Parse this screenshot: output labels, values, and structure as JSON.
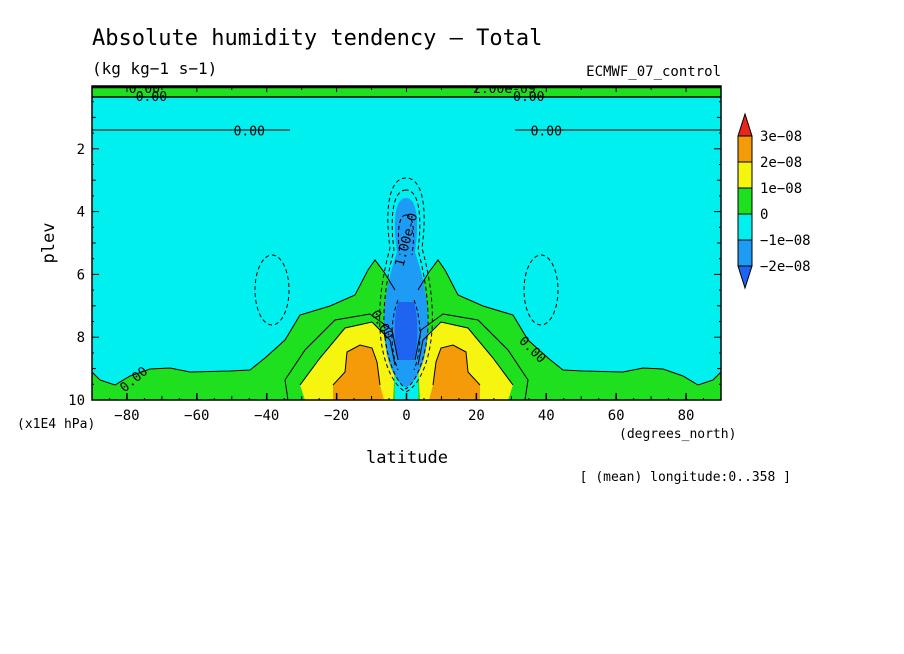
{
  "chart_data": {
    "type": "heatmap",
    "title": "Absolute humidity tendency — Total",
    "units": "(kg kg−1 s−1)",
    "dataset": "ECMWF_07_control",
    "xlabel": "latitude",
    "x_units": "(degrees_north)",
    "ylabel": "plev",
    "y_units": "(x1E4 hPa)",
    "footnote": "[ (mean) longitude:0..358 ]",
    "xlim": [
      -90,
      90
    ],
    "ylim": [
      10,
      0
    ],
    "x_ticks": [
      -80,
      -60,
      -40,
      -20,
      0,
      20,
      40,
      60,
      80
    ],
    "x_tick_labels": [
      "−80",
      "−60",
      "−40",
      "−20",
      "0",
      "20",
      "40",
      "60",
      "80"
    ],
    "y_ticks": [
      2,
      4,
      6,
      8,
      10
    ],
    "y_tick_labels": [
      "2",
      "4",
      "6",
      "8",
      "10"
    ],
    "levels": [
      {
        "label": "3e−08",
        "color": "#e8261a"
      },
      {
        "label": "2e−08",
        "color": "#f59b0a"
      },
      {
        "label": "1e−08",
        "color": "#f5f50f"
      },
      {
        "label": "0",
        "color": "#1ee01e"
      },
      {
        "label": "−1e−08",
        "color": "#00f0f0"
      },
      {
        "label": "−2e−08",
        "color": "#1e9cf5"
      }
    ],
    "extra_fill_color": "#1e64f0",
    "contour_labels": [
      {
        "text": "0.00",
        "x": -75,
        "y": 0.1
      },
      {
        "text": "0.00",
        "x": -73,
        "y": 0.35
      },
      {
        "text": "0.00",
        "x": -45,
        "y": 1.45
      },
      {
        "text": "2.00e-09",
        "x": 28,
        "y": 0.1
      },
      {
        "text": "0.00",
        "x": 35,
        "y": 0.35
      },
      {
        "text": "0.00",
        "x": 40,
        "y": 1.45
      },
      {
        "text": "1.00e-0",
        "x": 0,
        "y": 4.9
      },
      {
        "text": "0.00",
        "x": -7,
        "y": 7.6
      },
      {
        "text": "0.00",
        "x": 36,
        "y": 8.4
      },
      {
        "text": "0.00",
        "x": -78,
        "y": 9.35
      }
    ]
  }
}
